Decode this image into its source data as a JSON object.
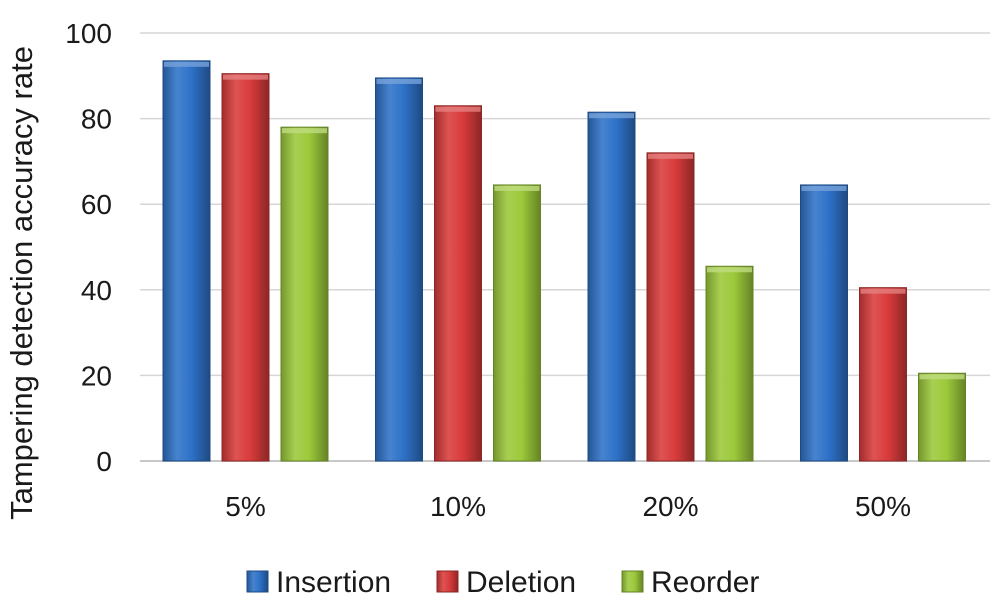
{
  "chart_data": {
    "type": "bar",
    "title": "",
    "xlabel": "",
    "ylabel": "Tampering detection accuracy rate",
    "categories": [
      "5%",
      "10%",
      "20%",
      "50%"
    ],
    "series": [
      {
        "name": "Insertion",
        "color": "#2e72c8",
        "values": [
          93.5,
          89.5,
          81.5,
          64.5
        ]
      },
      {
        "name": "Deletion",
        "color": "#d93b3b",
        "values": [
          90.5,
          83.0,
          72.0,
          40.5
        ]
      },
      {
        "name": "Reorder",
        "color": "#9cc93a",
        "values": [
          78.0,
          64.5,
          45.5,
          20.5
        ]
      }
    ],
    "ylim": [
      0,
      100
    ],
    "yticks": [
      0,
      20,
      40,
      60,
      80,
      100
    ],
    "grid": true,
    "legend_position": "bottom"
  }
}
